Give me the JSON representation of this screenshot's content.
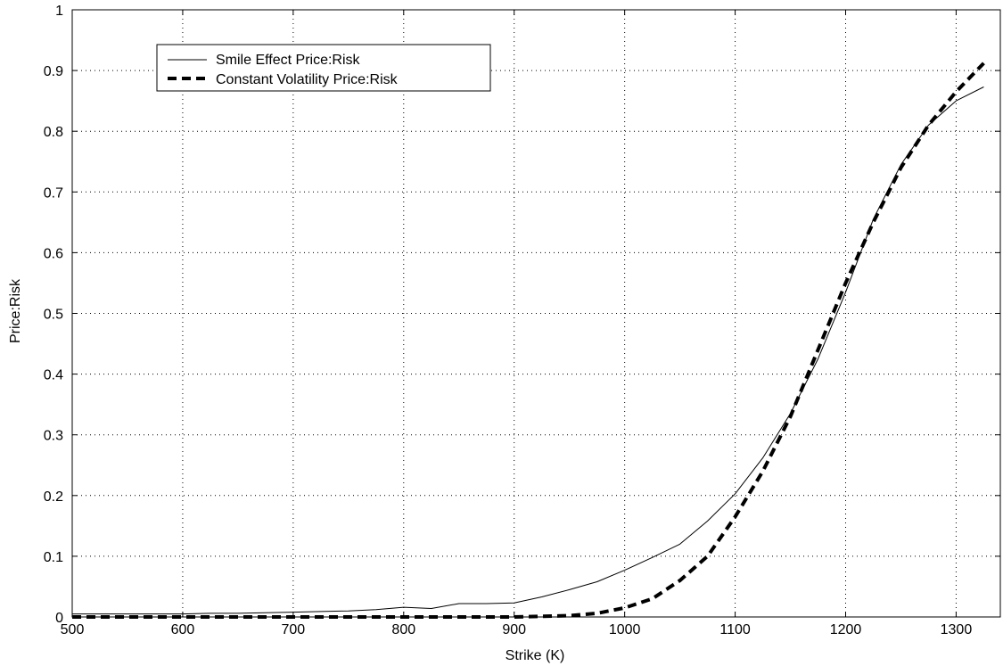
{
  "chart_data": {
    "type": "line",
    "title": "",
    "xlabel": "Strike (K)",
    "ylabel": "Price:Risk",
    "xlim": [
      500,
      1340
    ],
    "ylim": [
      0,
      1
    ],
    "xticks": [
      500,
      600,
      700,
      800,
      900,
      1000,
      1100,
      1200,
      1300
    ],
    "yticks": [
      0,
      0.1,
      0.2,
      0.3,
      0.4,
      0.5,
      0.6,
      0.7,
      0.8,
      0.9,
      1
    ],
    "ytick_labels": [
      "0",
      "0.1",
      "0.2",
      "0.3",
      "0.4",
      "0.5",
      "0.6",
      "0.7",
      "0.8",
      "0.9",
      "1"
    ],
    "xtick_labels": [
      "500",
      "600",
      "700",
      "800",
      "900",
      "1000",
      "1100",
      "1200",
      "1300"
    ],
    "grid": true,
    "legend_position": "top-left",
    "series": [
      {
        "name": "Smile Effect Price:Risk",
        "style": "solid",
        "color": "#000000",
        "x": [
          500,
          525,
          550,
          575,
          600,
          625,
          650,
          675,
          700,
          725,
          750,
          775,
          800,
          825,
          850,
          875,
          900,
          925,
          950,
          975,
          1000,
          1025,
          1050,
          1075,
          1100,
          1125,
          1150,
          1175,
          1200,
          1225,
          1250,
          1275,
          1300,
          1325
        ],
        "y": [
          0.005,
          0.005,
          0.005,
          0.005,
          0.005,
          0.006,
          0.006,
          0.007,
          0.008,
          0.009,
          0.01,
          0.012,
          0.016,
          0.014,
          0.022,
          0.022,
          0.023,
          0.033,
          0.045,
          0.058,
          0.077,
          0.098,
          0.12,
          0.158,
          0.203,
          0.262,
          0.335,
          0.425,
          0.535,
          0.655,
          0.745,
          0.81,
          0.85,
          0.873
        ]
      },
      {
        "name": "Constant Volatility Price:Risk",
        "style": "dashed",
        "color": "#000000",
        "x": [
          500,
          550,
          600,
          650,
          700,
          750,
          800,
          850,
          900,
          925,
          950,
          975,
          1000,
          1025,
          1050,
          1075,
          1100,
          1125,
          1150,
          1175,
          1200,
          1225,
          1250,
          1275,
          1300,
          1325
        ],
        "y": [
          0,
          0,
          0,
          0,
          0,
          0,
          0,
          0,
          0,
          0.001,
          0.002,
          0.006,
          0.015,
          0.03,
          0.06,
          0.1,
          0.165,
          0.24,
          0.33,
          0.44,
          0.55,
          0.65,
          0.74,
          0.81,
          0.865,
          0.912
        ]
      }
    ]
  }
}
